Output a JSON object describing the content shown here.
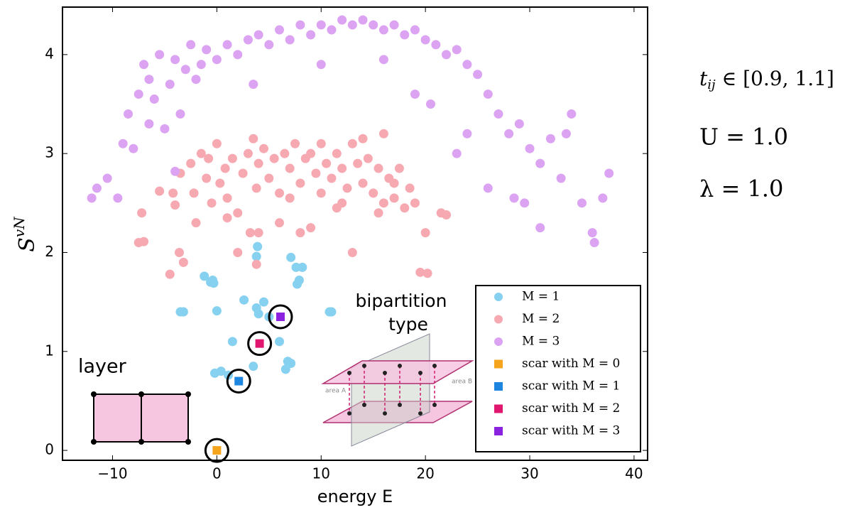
{
  "chart_data": {
    "type": "scatter",
    "xlabel": "energy E",
    "ylabel": "S",
    "ylabel_sup": "vN",
    "xlim": [
      -14.8,
      41.3
    ],
    "ylim": [
      -0.1,
      4.48
    ],
    "xticks": [
      {
        "value": -10,
        "label": "−10"
      },
      0,
      10,
      20,
      30,
      40
    ],
    "yticks": [
      0,
      1,
      2,
      3,
      4
    ],
    "legend": "lower right",
    "annotations": {
      "t": "t",
      "t_sub": "ij",
      "t_range": " ∈ [0.9, 1.1]",
      "U": "U = 1.0",
      "lambda": "λ = 1.0",
      "layer": "layer",
      "bipartition": "bipartition",
      "bipartition2": "type",
      "areaA": "area A",
      "areaB": "area B"
    },
    "series": [
      {
        "name": "M = 1",
        "color": "#86d0f0",
        "marker": "circle",
        "x": [
          -3.5,
          -3.2,
          -1.2,
          -0.6,
          -0.4,
          -0.3,
          0,
          1.5,
          2.6,
          3.8,
          3.9,
          3.8,
          4,
          4.5,
          5,
          7.1,
          7.6,
          8.2,
          7.9,
          7.7,
          10.8,
          11,
          6,
          6.8,
          6.6,
          3.5,
          0.4,
          1.1,
          7.1,
          -0.2
        ],
        "values": [
          1.4,
          1.4,
          1.76,
          1.7,
          1.72,
          1.69,
          1.41,
          1.1,
          1.52,
          1.44,
          2.06,
          1.96,
          1.38,
          1.5,
          1.35,
          1.95,
          1.85,
          1.85,
          1.72,
          1.68,
          1.4,
          1.4,
          1.1,
          0.9,
          0.82,
          0.85,
          0.8,
          0.76,
          0.88,
          0.78
        ]
      },
      {
        "name": "M = 2",
        "color": "#f7a9b2",
        "marker": "circle",
        "x": [
          -7.5,
          -7,
          -7.2,
          -5.5,
          -4.2,
          -4,
          -3.5,
          -2.5,
          -2.2,
          -1.5,
          -1,
          -0.8,
          -0.5,
          0,
          0.3,
          0.8,
          1,
          1.5,
          2,
          2.5,
          3,
          3.2,
          3.5,
          3.8,
          4,
          4.5,
          5,
          5.5,
          6,
          6.5,
          7,
          7.5,
          8,
          8.5,
          9,
          9.5,
          10,
          10.5,
          11,
          11.5,
          12,
          12.5,
          13,
          13.5,
          14,
          14.5,
          15,
          15.5,
          16,
          16.5,
          17,
          17.5,
          18,
          18.5,
          19,
          20,
          21.5,
          22,
          19.5,
          20.2,
          13,
          3.8,
          -4.5,
          -3.2,
          -3.6,
          2,
          6,
          8,
          9,
          11.5,
          1,
          -2,
          15.5,
          17,
          4,
          10,
          7,
          12,
          14,
          16
        ],
        "values": [
          2.1,
          2.11,
          2.4,
          2.62,
          2.6,
          2.48,
          2.8,
          2.9,
          2.6,
          3.0,
          2.75,
          2.95,
          2.5,
          3.1,
          2.7,
          2.85,
          2.55,
          2.95,
          2.4,
          2.8,
          3.0,
          2.2,
          3.15,
          2.65,
          2.9,
          3.05,
          2.75,
          2.95,
          2.6,
          3.0,
          2.85,
          3.1,
          2.7,
          2.95,
          3.0,
          2.8,
          3.1,
          2.9,
          2.75,
          3.0,
          2.85,
          2.65,
          3.1,
          2.9,
          2.7,
          2.95,
          2.6,
          2.85,
          2.5,
          2.75,
          2.55,
          2.85,
          2.45,
          2.65,
          2.5,
          2.2,
          2.4,
          2.38,
          1.8,
          1.79,
          2.0,
          1.88,
          1.78,
          1.9,
          2.0,
          2.0,
          2.3,
          2.2,
          2.25,
          2.45,
          2.35,
          2.3,
          2.4,
          2.7,
          2.2,
          2.6,
          2.55,
          2.5,
          3.15,
          3.2
        ]
      },
      {
        "name": "M = 3",
        "color": "#dba3f2",
        "marker": "circle",
        "x": [
          -12,
          -11.5,
          -10.5,
          -9.5,
          -9,
          -8.5,
          -7.5,
          -7,
          -6.5,
          -6,
          -5.5,
          -5,
          -4.5,
          -4,
          -3.5,
          -3,
          -2.5,
          -2,
          -1.5,
          -1,
          0,
          1,
          2,
          3,
          4,
          5,
          6,
          7,
          8,
          9,
          10,
          11,
          12,
          13,
          14,
          15,
          16,
          17,
          18,
          19,
          20,
          21,
          22,
          23,
          24,
          25,
          26,
          27,
          28,
          29,
          30,
          31,
          32,
          33,
          34,
          35,
          36,
          37,
          37.6,
          31,
          26,
          28.5,
          3.5,
          10,
          16,
          20.5,
          -8,
          -6.5,
          24,
          29.5,
          33.5,
          36.2,
          -4,
          23,
          19
        ],
        "values": [
          2.55,
          2.65,
          2.75,
          2.55,
          3.1,
          3.4,
          3.6,
          3.9,
          3.75,
          3.55,
          4.0,
          3.25,
          3.7,
          3.95,
          3.4,
          3.85,
          4.1,
          3.75,
          3.9,
          4.05,
          3.95,
          4.1,
          4.0,
          4.15,
          4.2,
          4.1,
          4.25,
          4.15,
          4.3,
          4.2,
          4.3,
          4.25,
          4.35,
          4.3,
          4.35,
          4.3,
          4.25,
          4.3,
          4.2,
          4.25,
          4.15,
          4.1,
          4.0,
          4.05,
          3.9,
          3.8,
          3.6,
          3.4,
          3.2,
          3.3,
          3.05,
          2.9,
          3.15,
          2.75,
          3.4,
          2.5,
          2.2,
          2.55,
          2.8,
          2.25,
          2.65,
          2.55,
          3.7,
          3.9,
          3.95,
          3.5,
          3.05,
          3.3,
          3.2,
          2.5,
          3.2,
          2.1,
          2.82,
          3.0,
          3.6
        ]
      },
      {
        "name": "scar with M = 0",
        "color": "#f5a41e",
        "marker": "square",
        "x": [
          0
        ],
        "values": [
          0
        ]
      },
      {
        "name": "scar with M = 1",
        "color": "#1f86e0",
        "marker": "square",
        "x": [
          2.1
        ],
        "values": [
          0.7
        ]
      },
      {
        "name": "scar with M = 2",
        "color": "#e0166f",
        "marker": "square",
        "x": [
          4.1
        ],
        "values": [
          1.08
        ]
      },
      {
        "name": "scar with M = 3",
        "color": "#8a22e0",
        "marker": "square",
        "x": [
          6.1
        ],
        "values": [
          1.35
        ]
      }
    ]
  }
}
